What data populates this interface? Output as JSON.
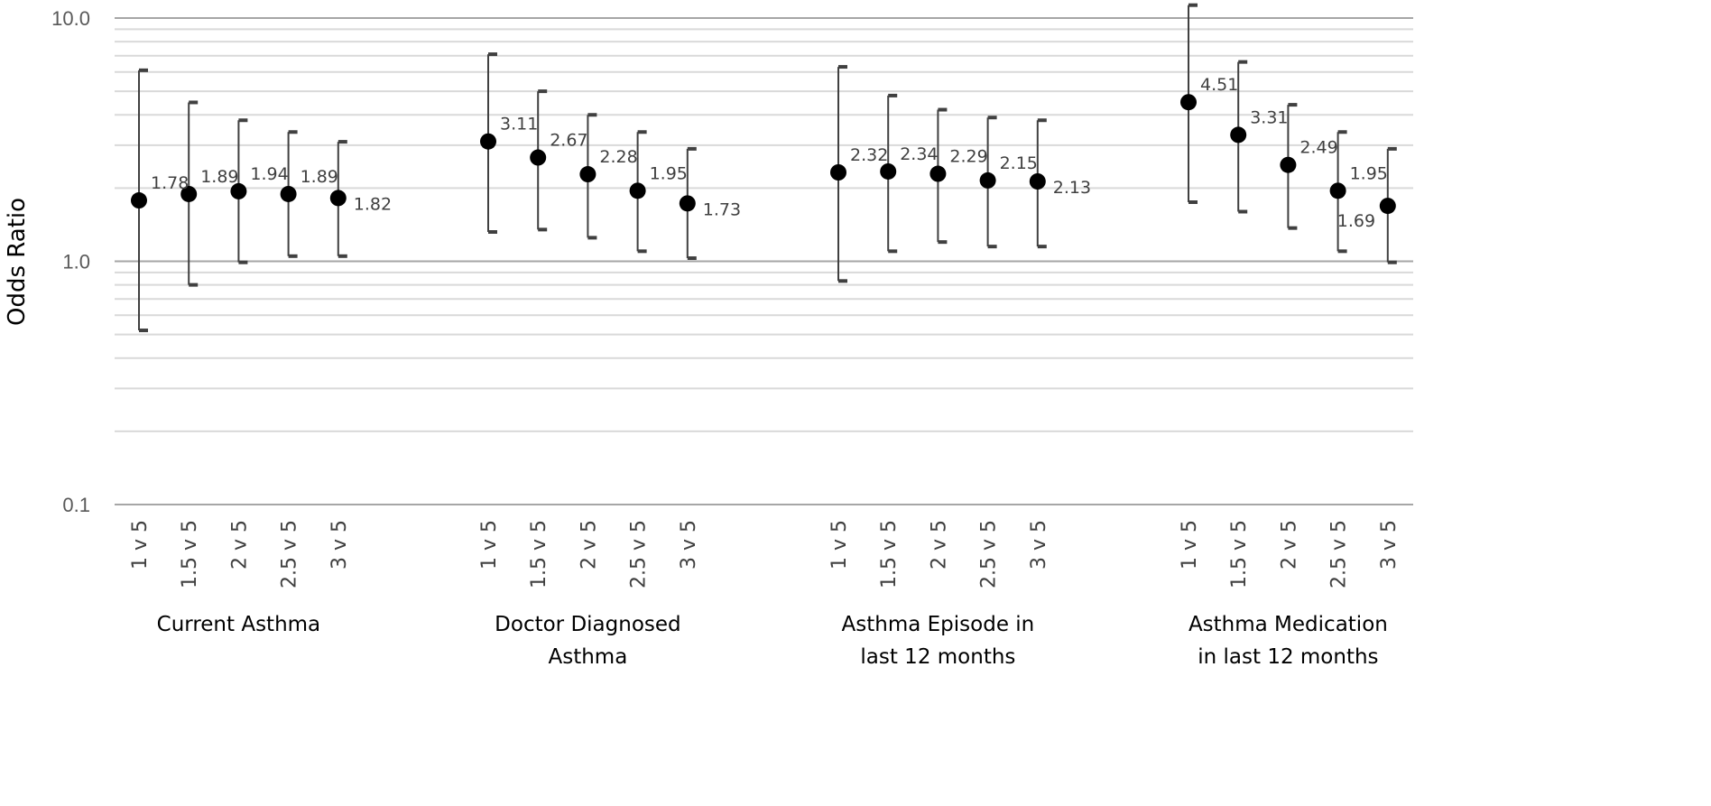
{
  "chart_data": {
    "type": "scatter",
    "ylabel": "Odds Ratio",
    "yscale": "log",
    "ylim": [
      0.1,
      10.0
    ],
    "y_tick_labels": [
      "10.0",
      "1.0",
      "0.1"
    ],
    "y_ticks": [
      10.0,
      1.0,
      0.1
    ],
    "grid": true,
    "error_bars": true,
    "colors": {
      "point": "#000000",
      "whisker": "#404040",
      "grid": "#d9d9d9",
      "major_grid": "#a6a6a6"
    },
    "groups": [
      {
        "label_lines": [
          "Current Asthma"
        ],
        "points": [
          {
            "category": "1 v 5",
            "value": 1.78,
            "value_label": "1.78",
            "lower": 0.52,
            "upper": 6.1
          },
          {
            "category": "1.5 v 5",
            "value": 1.89,
            "value_label": "1.89",
            "lower": 0.8,
            "upper": 4.5
          },
          {
            "category": "2 v 5",
            "value": 1.94,
            "value_label": "1.94",
            "lower": 0.99,
            "upper": 3.8
          },
          {
            "category": "2.5 v 5",
            "value": 1.89,
            "value_label": "1.89",
            "lower": 1.05,
            "upper": 3.4
          },
          {
            "category": "3 v 5",
            "value": 1.82,
            "value_label": "1.82",
            "lower": 1.05,
            "upper": 3.1
          }
        ]
      },
      {
        "label_lines": [
          "Doctor Diagnosed",
          "Asthma"
        ],
        "points": [
          {
            "category": "1 v 5",
            "value": 3.11,
            "value_label": "3.11",
            "lower": 1.32,
            "upper": 7.1
          },
          {
            "category": "1.5 v 5",
            "value": 2.67,
            "value_label": "2.67",
            "lower": 1.35,
            "upper": 5.0
          },
          {
            "category": "2 v 5",
            "value": 2.28,
            "value_label": "2.28",
            "lower": 1.25,
            "upper": 4.0
          },
          {
            "category": "2.5 v 5",
            "value": 1.95,
            "value_label": "1.95",
            "lower": 1.1,
            "upper": 3.4
          },
          {
            "category": "3 v 5",
            "value": 1.73,
            "value_label": "1.73",
            "lower": 1.03,
            "upper": 2.9
          }
        ]
      },
      {
        "label_lines": [
          "Asthma Episode in",
          "last 12 months"
        ],
        "points": [
          {
            "category": "1 v 5",
            "value": 2.32,
            "value_label": "2.32",
            "lower": 0.83,
            "upper": 6.3
          },
          {
            "category": "1.5 v 5",
            "value": 2.34,
            "value_label": "2.34",
            "lower": 1.1,
            "upper": 4.8
          },
          {
            "category": "2 v 5",
            "value": 2.29,
            "value_label": "2.29",
            "lower": 1.2,
            "upper": 4.2
          },
          {
            "category": "2.5 v 5",
            "value": 2.15,
            "value_label": "2.15",
            "lower": 1.15,
            "upper": 3.9
          },
          {
            "category": "3 v 5",
            "value": 2.13,
            "value_label": "2.13",
            "lower": 1.15,
            "upper": 3.8
          }
        ]
      },
      {
        "label_lines": [
          "Asthma Medication",
          "in last 12 months"
        ],
        "points": [
          {
            "category": "1 v 5",
            "value": 4.51,
            "value_label": "4.51",
            "lower": 1.75,
            "upper": 11.3
          },
          {
            "category": "1.5 v 5",
            "value": 3.31,
            "value_label": "3.31",
            "lower": 1.6,
            "upper": 6.6
          },
          {
            "category": "2 v 5",
            "value": 2.49,
            "value_label": "2.49",
            "lower": 1.37,
            "upper": 4.4
          },
          {
            "category": "2.5 v 5",
            "value": 1.95,
            "value_label": "1.95",
            "lower": 1.1,
            "upper": 3.4
          },
          {
            "category": "3 v 5",
            "value": 1.69,
            "value_label": "1.69",
            "lower": 0.99,
            "upper": 2.9
          }
        ]
      }
    ]
  }
}
